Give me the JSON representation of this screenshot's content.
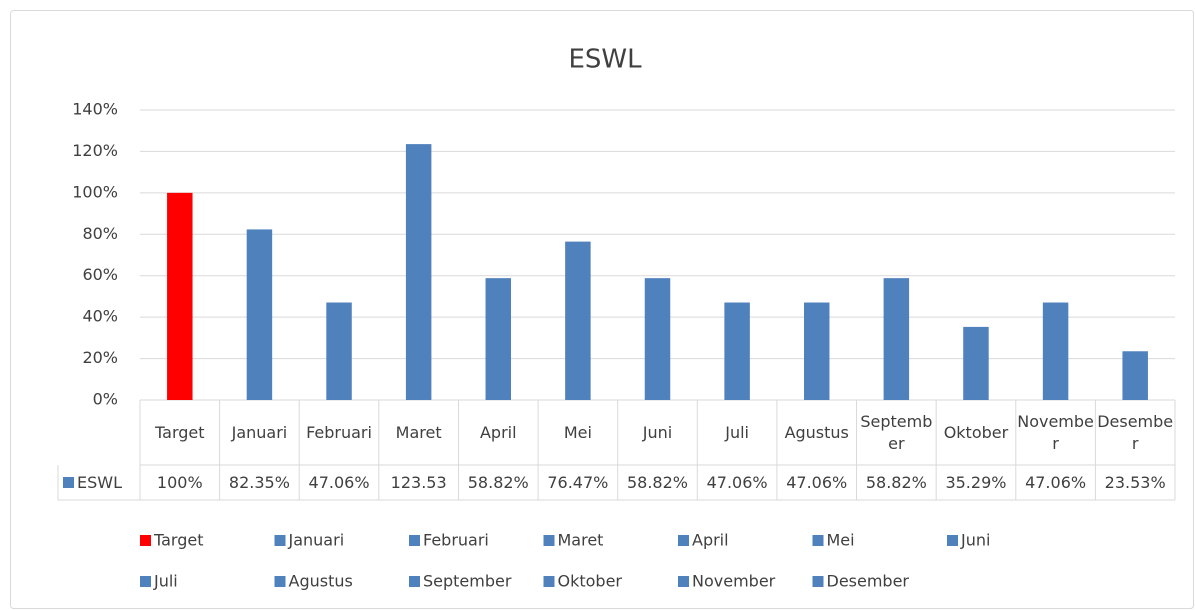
{
  "chart_data": {
    "type": "bar",
    "title": "ESWL",
    "categories": [
      "Target",
      "Januari",
      "Februari",
      "Maret",
      "April",
      "Mei",
      "Juni",
      "Juli",
      "Agustus",
      "September",
      "Oktober",
      "November",
      "Desember"
    ],
    "series": [
      {
        "name": "ESWL",
        "color": "#4f81bd",
        "colors": [
          "#ff0000",
          "#4f81bd",
          "#4f81bd",
          "#4f81bd",
          "#4f81bd",
          "#4f81bd",
          "#4f81bd",
          "#4f81bd",
          "#4f81bd",
          "#4f81bd",
          "#4f81bd",
          "#4f81bd",
          "#4f81bd"
        ],
        "values": [
          100,
          82.35,
          47.06,
          123.53,
          58.82,
          76.47,
          58.82,
          47.06,
          47.06,
          58.82,
          35.29,
          47.06,
          23.53
        ],
        "value_labels": [
          "100%",
          "82.35%",
          "47.06%",
          "123.53",
          "58.82%",
          "76.47%",
          "58.82%",
          "47.06%",
          "47.06%",
          "58.82%",
          "35.29%",
          "47.06%",
          "23.53%"
        ]
      }
    ],
    "ylim": [
      0,
      140
    ],
    "yticks": [
      {
        "value": 0,
        "label": "0%"
      },
      {
        "value": 20,
        "label": "20%"
      },
      {
        "value": 40,
        "label": "40%"
      },
      {
        "value": 60,
        "label": "60%"
      },
      {
        "value": 80,
        "label": "80%"
      },
      {
        "value": 100,
        "label": "100%"
      },
      {
        "value": 120,
        "label": "120%"
      },
      {
        "value": 140,
        "label": "140%"
      }
    ],
    "grid": true,
    "legend": "bottom",
    "data_table": true
  }
}
